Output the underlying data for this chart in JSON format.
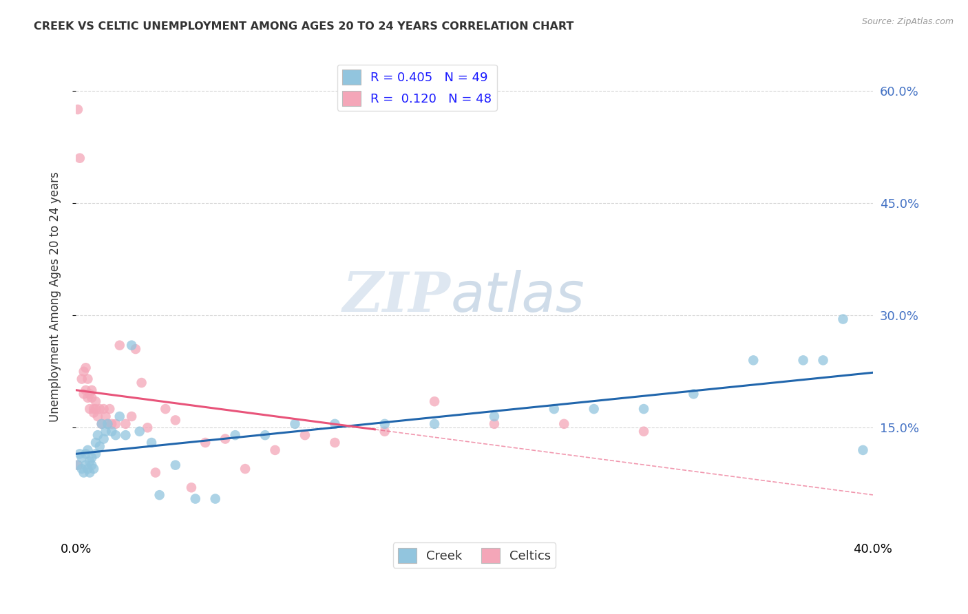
{
  "title": "CREEK VS CELTIC UNEMPLOYMENT AMONG AGES 20 TO 24 YEARS CORRELATION CHART",
  "source": "Source: ZipAtlas.com",
  "ylabel": "Unemployment Among Ages 20 to 24 years",
  "xlim": [
    0.0,
    0.4
  ],
  "ylim": [
    0.0,
    0.65
  ],
  "yticks": [
    0.15,
    0.3,
    0.45,
    0.6
  ],
  "ytick_labels": [
    "15.0%",
    "30.0%",
    "45.0%",
    "60.0%"
  ],
  "xticks": [
    0.0,
    0.05,
    0.1,
    0.15,
    0.2,
    0.25,
    0.3,
    0.35,
    0.4
  ],
  "legend_creek_r": "R = 0.405",
  "legend_creek_n": "N = 49",
  "legend_celtics_r": "R =  0.120",
  "legend_celtics_n": "N = 48",
  "creek_color": "#92c5de",
  "celtics_color": "#f4a6b8",
  "creek_line_color": "#2166ac",
  "celtics_line_color": "#e8547a",
  "watermark_zip": "ZIP",
  "watermark_atlas": "atlas",
  "creek_x": [
    0.001,
    0.002,
    0.003,
    0.003,
    0.004,
    0.005,
    0.005,
    0.006,
    0.006,
    0.007,
    0.007,
    0.008,
    0.008,
    0.009,
    0.01,
    0.01,
    0.011,
    0.012,
    0.013,
    0.014,
    0.015,
    0.016,
    0.018,
    0.02,
    0.022,
    0.025,
    0.028,
    0.032,
    0.038,
    0.042,
    0.05,
    0.06,
    0.07,
    0.08,
    0.095,
    0.11,
    0.13,
    0.155,
    0.18,
    0.21,
    0.24,
    0.26,
    0.285,
    0.31,
    0.34,
    0.365,
    0.375,
    0.385,
    0.395
  ],
  "creek_y": [
    0.1,
    0.115,
    0.095,
    0.11,
    0.09,
    0.1,
    0.115,
    0.095,
    0.12,
    0.09,
    0.105,
    0.1,
    0.11,
    0.095,
    0.13,
    0.115,
    0.14,
    0.125,
    0.155,
    0.135,
    0.145,
    0.155,
    0.145,
    0.14,
    0.165,
    0.14,
    0.26,
    0.145,
    0.13,
    0.06,
    0.1,
    0.055,
    0.055,
    0.14,
    0.14,
    0.155,
    0.155,
    0.155,
    0.155,
    0.165,
    0.175,
    0.175,
    0.175,
    0.195,
    0.24,
    0.24,
    0.24,
    0.295,
    0.12
  ],
  "celtics_x": [
    0.001,
    0.001,
    0.002,
    0.003,
    0.004,
    0.004,
    0.005,
    0.005,
    0.006,
    0.006,
    0.007,
    0.007,
    0.008,
    0.008,
    0.009,
    0.009,
    0.01,
    0.01,
    0.011,
    0.012,
    0.013,
    0.014,
    0.015,
    0.016,
    0.017,
    0.018,
    0.02,
    0.022,
    0.025,
    0.028,
    0.03,
    0.033,
    0.036,
    0.04,
    0.045,
    0.05,
    0.058,
    0.065,
    0.075,
    0.085,
    0.1,
    0.115,
    0.13,
    0.155,
    0.18,
    0.21,
    0.245,
    0.285
  ],
  "celtics_y": [
    0.1,
    0.575,
    0.51,
    0.215,
    0.195,
    0.225,
    0.2,
    0.23,
    0.19,
    0.215,
    0.195,
    0.175,
    0.19,
    0.2,
    0.17,
    0.175,
    0.175,
    0.185,
    0.165,
    0.175,
    0.155,
    0.175,
    0.165,
    0.155,
    0.175,
    0.155,
    0.155,
    0.26,
    0.155,
    0.165,
    0.255,
    0.21,
    0.15,
    0.09,
    0.175,
    0.16,
    0.07,
    0.13,
    0.135,
    0.095,
    0.12,
    0.14,
    0.13,
    0.145,
    0.185,
    0.155,
    0.155,
    0.145
  ]
}
